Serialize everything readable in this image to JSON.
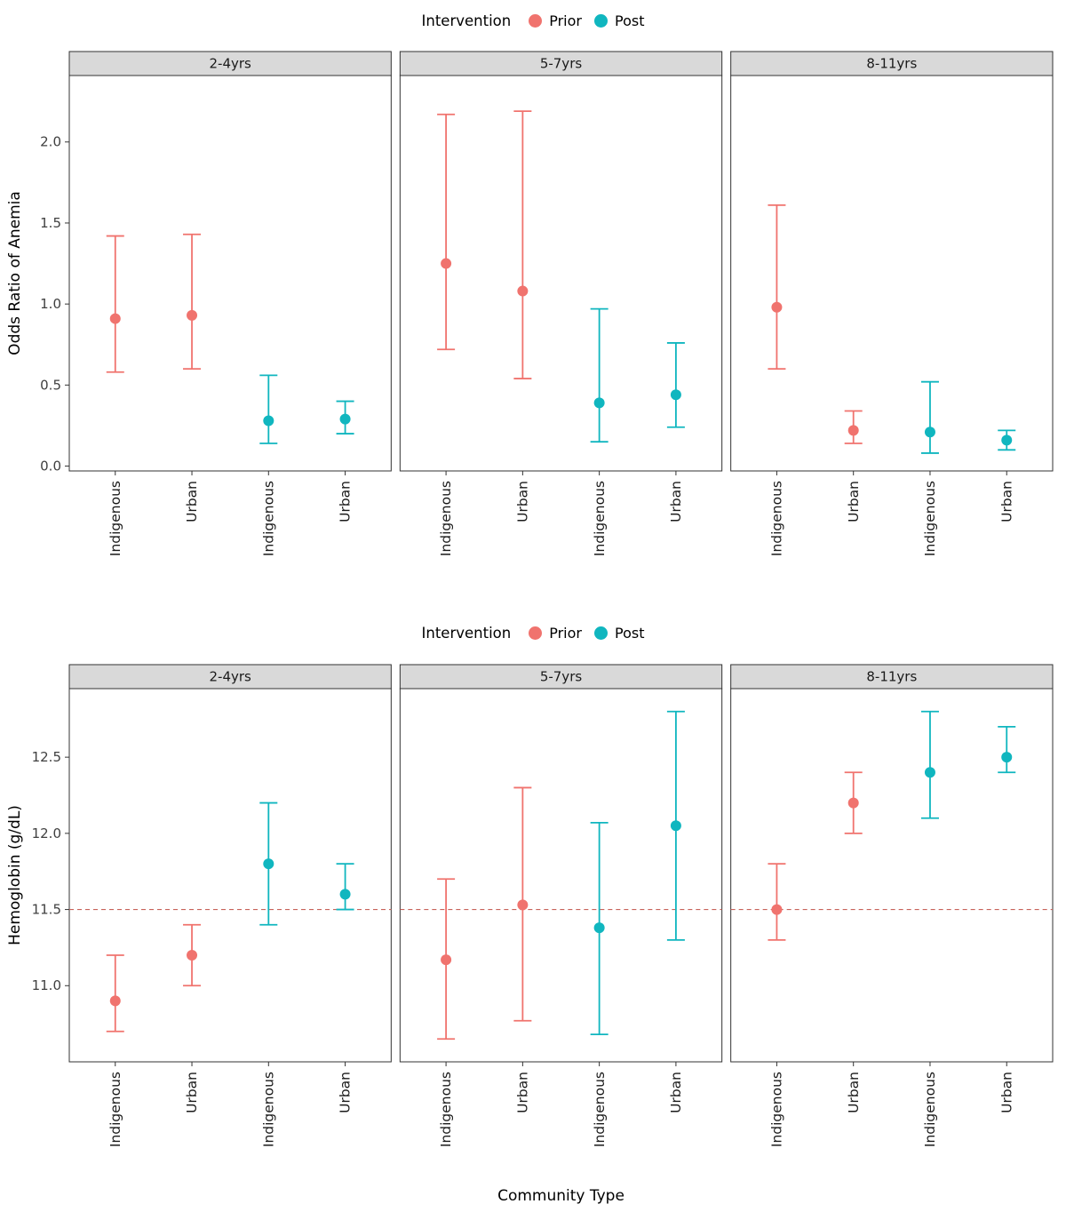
{
  "chart_data": [
    {
      "type": "pointrange",
      "legend_title": "Intervention",
      "legend": [
        {
          "label": "Prior",
          "color": "#F0736E"
        },
        {
          "label": "Post",
          "color": "#10B6BF"
        }
      ],
      "facet_labels": [
        "2-4yrs",
        "5-7yrs",
        "8-11yrs"
      ],
      "x_categories": [
        "Indigenous",
        "Urban",
        "Indigenous",
        "Urban"
      ],
      "ylabel": "Odds Ratio of Anemia",
      "xlabel": "",
      "ylim": [
        -0.03,
        2.41
      ],
      "yticks": [
        {
          "value": 0.0,
          "label": "0.0"
        },
        {
          "value": 0.5,
          "label": "0.5"
        },
        {
          "value": 1.0,
          "label": "1.0"
        },
        {
          "value": 1.5,
          "label": "1.5"
        },
        {
          "value": 2.0,
          "label": "2.0"
        }
      ],
      "hline": null,
      "panel_fill": "#ffffff",
      "strip_fill": "#d9d9d9",
      "series": [
        {
          "facet": "2-4yrs",
          "points": [
            {
              "x": "Indigenous",
              "group": "Prior",
              "y": 0.91,
              "ymin": 0.58,
              "ymax": 1.42
            },
            {
              "x": "Urban",
              "group": "Prior",
              "y": 0.93,
              "ymin": 0.6,
              "ymax": 1.43
            },
            {
              "x": "Indigenous",
              "group": "Post",
              "y": 0.28,
              "ymin": 0.14,
              "ymax": 0.56
            },
            {
              "x": "Urban",
              "group": "Post",
              "y": 0.29,
              "ymin": 0.2,
              "ymax": 0.4
            }
          ]
        },
        {
          "facet": "5-7yrs",
          "points": [
            {
              "x": "Indigenous",
              "group": "Prior",
              "y": 1.25,
              "ymin": 0.72,
              "ymax": 2.17
            },
            {
              "x": "Urban",
              "group": "Prior",
              "y": 1.08,
              "ymin": 0.54,
              "ymax": 2.19
            },
            {
              "x": "Indigenous",
              "group": "Post",
              "y": 0.39,
              "ymin": 0.15,
              "ymax": 0.97
            },
            {
              "x": "Urban",
              "group": "Post",
              "y": 0.44,
              "ymin": 0.24,
              "ymax": 0.76
            }
          ]
        },
        {
          "facet": "8-11yrs",
          "points": [
            {
              "x": "Indigenous",
              "group": "Prior",
              "y": 0.98,
              "ymin": 0.6,
              "ymax": 1.61
            },
            {
              "x": "Urban",
              "group": "Prior",
              "y": 0.22,
              "ymin": 0.14,
              "ymax": 0.34
            },
            {
              "x": "Indigenous",
              "group": "Post",
              "y": 0.21,
              "ymin": 0.08,
              "ymax": 0.52
            },
            {
              "x": "Urban",
              "group": "Post",
              "y": 0.16,
              "ymin": 0.1,
              "ymax": 0.22
            }
          ]
        }
      ]
    },
    {
      "type": "pointrange",
      "legend_title": "Intervention",
      "legend": [
        {
          "label": "Prior",
          "color": "#F0736E"
        },
        {
          "label": "Post",
          "color": "#10B6BF"
        }
      ],
      "facet_labels": [
        "2-4yrs",
        "5-7yrs",
        "8-11yrs"
      ],
      "x_categories": [
        "Indigenous",
        "Urban",
        "Indigenous",
        "Urban"
      ],
      "ylabel": "Hemoglobin (g/dL)",
      "xlabel": "Community Type",
      "ylim": [
        10.5,
        12.95
      ],
      "yticks": [
        {
          "value": 11.0,
          "label": "11.0"
        },
        {
          "value": 11.5,
          "label": "11.5"
        },
        {
          "value": 12.0,
          "label": "12.0"
        },
        {
          "value": 12.5,
          "label": "12.5"
        }
      ],
      "hline": {
        "y": 11.5,
        "color": "#C8635A",
        "style": "dashed"
      },
      "panel_fill": "#ffffff",
      "strip_fill": "#d9d9d9",
      "series": [
        {
          "facet": "2-4yrs",
          "points": [
            {
              "x": "Indigenous",
              "group": "Prior",
              "y": 10.9,
              "ymin": 10.7,
              "ymax": 11.2
            },
            {
              "x": "Urban",
              "group": "Prior",
              "y": 11.2,
              "ymin": 11.0,
              "ymax": 11.4
            },
            {
              "x": "Indigenous",
              "group": "Post",
              "y": 11.8,
              "ymin": 11.4,
              "ymax": 12.2
            },
            {
              "x": "Urban",
              "group": "Post",
              "y": 11.6,
              "ymin": 11.5,
              "ymax": 11.8
            }
          ]
        },
        {
          "facet": "5-7yrs",
          "points": [
            {
              "x": "Indigenous",
              "group": "Prior",
              "y": 11.17,
              "ymin": 10.65,
              "ymax": 11.7
            },
            {
              "x": "Urban",
              "group": "Prior",
              "y": 11.53,
              "ymin": 10.77,
              "ymax": 12.3
            },
            {
              "x": "Indigenous",
              "group": "Post",
              "y": 11.38,
              "ymin": 10.68,
              "ymax": 12.07
            },
            {
              "x": "Urban",
              "group": "Post",
              "y": 12.05,
              "ymin": 11.3,
              "ymax": 12.8
            }
          ]
        },
        {
          "facet": "8-11yrs",
          "points": [
            {
              "x": "Indigenous",
              "group": "Prior",
              "y": 11.5,
              "ymin": 11.3,
              "ymax": 11.8
            },
            {
              "x": "Urban",
              "group": "Prior",
              "y": 12.2,
              "ymin": 12.0,
              "ymax": 12.4
            },
            {
              "x": "Indigenous",
              "group": "Post",
              "y": 12.4,
              "ymin": 12.1,
              "ymax": 12.8
            },
            {
              "x": "Urban",
              "group": "Post",
              "y": 12.5,
              "ymin": 12.4,
              "ymax": 12.7
            }
          ]
        }
      ]
    }
  ]
}
